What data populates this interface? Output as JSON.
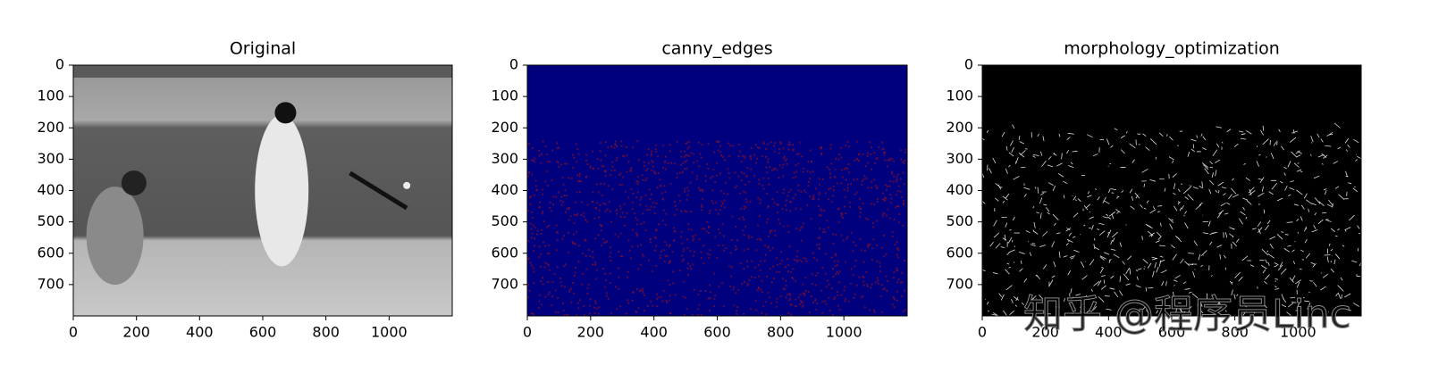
{
  "chart_data": [
    {
      "type": "image",
      "title": "Original",
      "xlim": [
        0,
        1200
      ],
      "ylim": [
        800,
        0
      ],
      "xticks": [
        0,
        200,
        400,
        600,
        800,
        1000
      ],
      "yticks": [
        0,
        100,
        200,
        300,
        400,
        500,
        600,
        700
      ],
      "colormap": "gray"
    },
    {
      "type": "image",
      "title": "canny_edges",
      "xlim": [
        0,
        1200
      ],
      "ylim": [
        800,
        0
      ],
      "xticks": [
        0,
        200,
        400,
        600,
        800,
        1000
      ],
      "yticks": [
        0,
        100,
        200,
        300,
        400,
        500,
        600,
        700
      ],
      "colormap": "jet"
    },
    {
      "type": "image",
      "title": "morphology_optimization",
      "xlim": [
        0,
        1200
      ],
      "ylim": [
        800,
        0
      ],
      "xticks": [
        0,
        200,
        400,
        600,
        800,
        1000
      ],
      "yticks": [
        0,
        100,
        200,
        300,
        400,
        500,
        600,
        700
      ],
      "colormap": "gray-edges"
    }
  ],
  "watermark": "知乎 @程序员Linc"
}
